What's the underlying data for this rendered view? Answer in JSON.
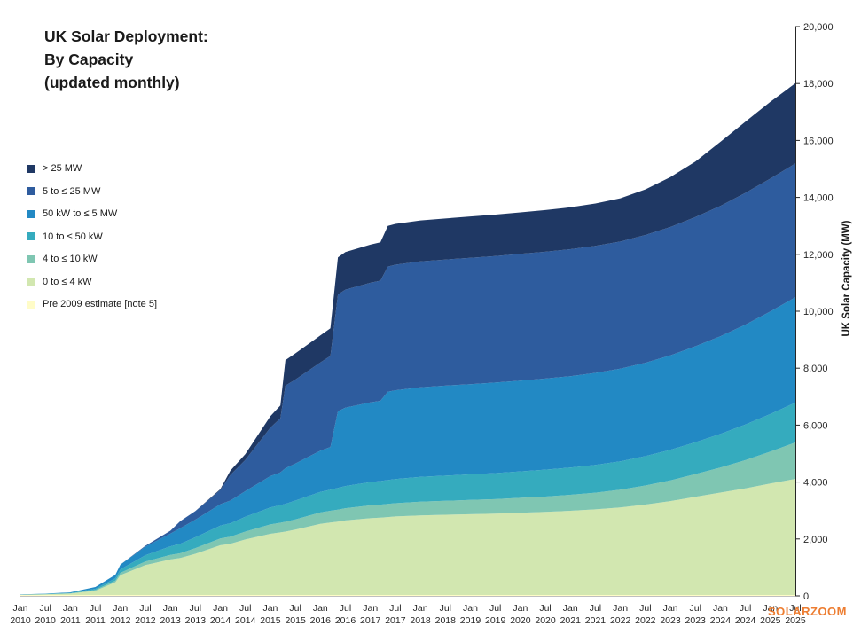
{
  "header": {
    "title_lines": [
      "UK Solar Deployment:",
      "By Capacity",
      "(updated monthly)"
    ]
  },
  "watermark": {
    "text": "SOLARZOOM",
    "color": "#ED7D31"
  },
  "chart_data": {
    "type": "area",
    "stacked": true,
    "title": "UK Solar Deployment: By Capacity (updated monthly)",
    "ylabel": "UK Solar Capacity (MW)",
    "ylim": [
      0,
      20000
    ],
    "x_range": [
      2010.0,
      2025.5
    ],
    "grid": false,
    "legend_position": "left",
    "yticks": {
      "values": [
        0,
        2000,
        4000,
        6000,
        8000,
        10000,
        12000,
        14000,
        16000,
        18000,
        20000
      ],
      "labels": [
        "0",
        "2,000",
        "4,000",
        "6,000",
        "8,000",
        "10,000",
        "12,000",
        "14,000",
        "16,000",
        "18,000",
        "20,000"
      ]
    },
    "x_ticks": [
      {
        "t": 2010.0,
        "line1": "Jan",
        "line2": "2010"
      },
      {
        "t": 2010.5,
        "line1": "Jul",
        "line2": "2010"
      },
      {
        "t": 2011.0,
        "line1": "Jan",
        "line2": "2011"
      },
      {
        "t": 2011.5,
        "line1": "Jul",
        "line2": "2011"
      },
      {
        "t": 2012.0,
        "line1": "Jan",
        "line2": "2012"
      },
      {
        "t": 2012.5,
        "line1": "Jul",
        "line2": "2012"
      },
      {
        "t": 2013.0,
        "line1": "Jan",
        "line2": "2013"
      },
      {
        "t": 2013.5,
        "line1": "Jul",
        "line2": "2013"
      },
      {
        "t": 2014.0,
        "line1": "Jan",
        "line2": "2014"
      },
      {
        "t": 2014.5,
        "line1": "Jul",
        "line2": "2014"
      },
      {
        "t": 2015.0,
        "line1": "Jan",
        "line2": "2015"
      },
      {
        "t": 2015.5,
        "line1": "Jul",
        "line2": "2015"
      },
      {
        "t": 2016.0,
        "line1": "Jan",
        "line2": "2016"
      },
      {
        "t": 2016.5,
        "line1": "Jul",
        "line2": "2016"
      },
      {
        "t": 2017.0,
        "line1": "Jan",
        "line2": "2017"
      },
      {
        "t": 2017.5,
        "line1": "Jul",
        "line2": "2017"
      },
      {
        "t": 2018.0,
        "line1": "Jan",
        "line2": "2018"
      },
      {
        "t": 2018.5,
        "line1": "Jul",
        "line2": "2018"
      },
      {
        "t": 2019.0,
        "line1": "Jan",
        "line2": "2019"
      },
      {
        "t": 2019.5,
        "line1": "Jul",
        "line2": "2019"
      },
      {
        "t": 2020.0,
        "line1": "Jan",
        "line2": "2020"
      },
      {
        "t": 2020.5,
        "line1": "Jul",
        "line2": "2020"
      },
      {
        "t": 2021.0,
        "line1": "Jan",
        "line2": "2021"
      },
      {
        "t": 2021.5,
        "line1": "Jul",
        "line2": "2021"
      },
      {
        "t": 2022.0,
        "line1": "Jan",
        "line2": "2022"
      },
      {
        "t": 2022.5,
        "line1": "Jul",
        "line2": "2022"
      },
      {
        "t": 2023.0,
        "line1": "Jan",
        "line2": "2023"
      },
      {
        "t": 2023.5,
        "line1": "Jul",
        "line2": "2023"
      },
      {
        "t": 2024.0,
        "line1": "Jan",
        "line2": "2024"
      },
      {
        "t": 2024.5,
        "line1": "Jul",
        "line2": "2024"
      },
      {
        "t": 2025.0,
        "line1": "Jan",
        "line2": "2025"
      },
      {
        "t": 2025.5,
        "line1": "Jul",
        "line2": "2025"
      }
    ],
    "x": [
      2010.0,
      2010.5,
      2011.0,
      2011.5,
      2011.9,
      2012.0,
      2012.5,
      2013.0,
      2013.2,
      2013.5,
      2014.0,
      2014.2,
      2014.5,
      2015.0,
      2015.2,
      2015.3,
      2015.5,
      2016.0,
      2016.2,
      2016.35,
      2016.5,
      2017.0,
      2017.2,
      2017.35,
      2017.5,
      2018.0,
      2018.5,
      2019.0,
      2019.5,
      2020.0,
      2020.5,
      2021.0,
      2021.5,
      2022.0,
      2022.5,
      2023.0,
      2023.5,
      2024.0,
      2024.5,
      2025.0,
      2025.5
    ],
    "series": [
      {
        "key": "pre-2009",
        "name": "Pre 2009 estimate [note 5]",
        "color": "#FFFCC8",
        "values": [
          30,
          30,
          30,
          30,
          30,
          30,
          30,
          30,
          30,
          30,
          30,
          30,
          30,
          30,
          30,
          30,
          30,
          30,
          30,
          30,
          30,
          30,
          30,
          30,
          30,
          30,
          30,
          30,
          30,
          30,
          30,
          30,
          30,
          30,
          30,
          30,
          30,
          30,
          30,
          30,
          30
        ]
      },
      {
        "key": "0-4kw",
        "name": "0 to ≤ 4 kW",
        "color": "#D2E7B0",
        "values": [
          10,
          25,
          50,
          150,
          450,
          700,
          1050,
          1250,
          1300,
          1450,
          1750,
          1800,
          1950,
          2150,
          2200,
          2230,
          2300,
          2500,
          2550,
          2580,
          2620,
          2700,
          2720,
          2740,
          2760,
          2800,
          2820,
          2840,
          2860,
          2890,
          2920,
          2960,
          3010,
          3080,
          3180,
          3300,
          3450,
          3600,
          3750,
          3920,
          4080
        ]
      },
      {
        "key": "4-10kw",
        "name": "4 to ≤ 10 kW",
        "color": "#7FC6B2",
        "values": [
          2,
          5,
          10,
          30,
          60,
          80,
          130,
          160,
          170,
          200,
          240,
          250,
          280,
          330,
          340,
          345,
          360,
          400,
          410,
          420,
          430,
          450,
          455,
          460,
          465,
          480,
          490,
          500,
          510,
          525,
          540,
          560,
          585,
          620,
          670,
          730,
          800,
          880,
          990,
          1120,
          1280
        ]
      },
      {
        "key": "10-50kw",
        "name": "10 to ≤ 50 kW",
        "color": "#35ABBE",
        "values": [
          3,
          7,
          15,
          40,
          80,
          120,
          220,
          300,
          330,
          380,
          450,
          470,
          520,
          600,
          620,
          630,
          660,
          720,
          740,
          760,
          780,
          820,
          830,
          840,
          850,
          870,
          885,
          900,
          915,
          930,
          945,
          960,
          980,
          1000,
          1030,
          1070,
          1120,
          1180,
          1250,
          1320,
          1400
        ]
      },
      {
        "key": "50kw-5mw",
        "name": "50 kW to ≤ 5 MW",
        "color": "#2289C4",
        "values": [
          5,
          10,
          20,
          60,
          120,
          170,
          300,
          450,
          550,
          620,
          750,
          800,
          900,
          1100,
          1150,
          1250,
          1300,
          1450,
          1500,
          2700,
          2750,
          2800,
          2820,
          3100,
          3120,
          3150,
          3160,
          3170,
          3180,
          3190,
          3200,
          3210,
          3230,
          3250,
          3280,
          3320,
          3370,
          3430,
          3510,
          3600,
          3700
        ]
      },
      {
        "key": "5-25mw",
        "name": "5 to ≤ 25 MW",
        "color": "#2E5C9E",
        "values": [
          0,
          0,
          0,
          0,
          0,
          0,
          30,
          100,
          250,
          300,
          500,
          900,
          1100,
          1700,
          1900,
          2900,
          2950,
          3100,
          3200,
          4100,
          4150,
          4200,
          4220,
          4400,
          4410,
          4420,
          4430,
          4440,
          4445,
          4450,
          4455,
          4460,
          4465,
          4470,
          4490,
          4510,
          4540,
          4580,
          4630,
          4670,
          4700
        ]
      },
      {
        "key": "gt-25mw",
        "name": "> 25 MW",
        "color": "#1F3864",
        "values": [
          0,
          0,
          0,
          0,
          0,
          0,
          0,
          0,
          0,
          0,
          30,
          150,
          200,
          400,
          450,
          900,
          920,
          950,
          970,
          1300,
          1320,
          1340,
          1350,
          1430,
          1435,
          1440,
          1445,
          1450,
          1455,
          1460,
          1465,
          1470,
          1485,
          1520,
          1600,
          1750,
          1950,
          2250,
          2500,
          2700,
          2820
        ]
      }
    ],
    "legend": [
      {
        "label": "> 25 MW",
        "color": "#1F3864"
      },
      {
        "label": "5 to ≤ 25 MW",
        "color": "#2E5C9E"
      },
      {
        "label": "50 kW to ≤ 5 MW",
        "color": "#2289C4"
      },
      {
        "label": "10 to ≤ 50 kW",
        "color": "#35ABBE"
      },
      {
        "label": "4 to ≤ 10 kW",
        "color": "#7FC6B2"
      },
      {
        "label": "0 to ≤ 4 kW",
        "color": "#D2E7B0"
      },
      {
        "label": "Pre 2009 estimate [note 5]",
        "color": "#FFFCC8"
      }
    ]
  }
}
